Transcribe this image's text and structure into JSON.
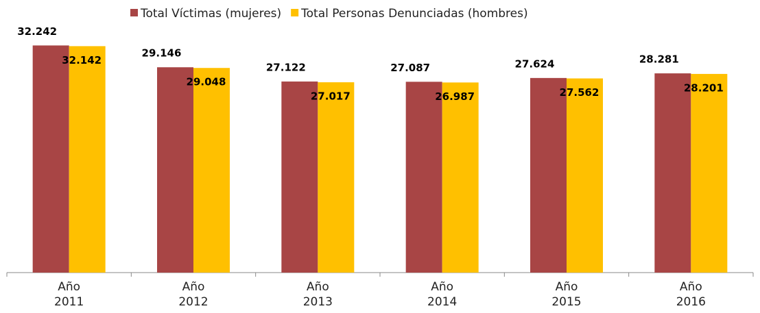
{
  "chart_data": {
    "type": "bar",
    "categories": [
      "Año 2011",
      "Año 2012",
      "Año 2013",
      "Año 2014",
      "Año 2015",
      "Año 2016"
    ],
    "series": [
      {
        "name": "Total Víctimas (mujeres)",
        "color": "#a84545",
        "values": [
          32242,
          29146,
          27122,
          27087,
          27624,
          28281
        ],
        "value_labels": [
          "32.242",
          "29.146",
          "27.122",
          "27.087",
          "27.624",
          "28.281"
        ]
      },
      {
        "name": "Total Personas Denunciadas (hombres)",
        "color": "#ffc000",
        "values": [
          32142,
          29048,
          27017,
          26987,
          27562,
          28201
        ],
        "value_labels": [
          "32.142",
          "29.048",
          "27.017",
          "26.987",
          "27.562",
          "28.201"
        ]
      }
    ],
    "ylim": [
      0,
      35000
    ],
    "legend": "top"
  }
}
